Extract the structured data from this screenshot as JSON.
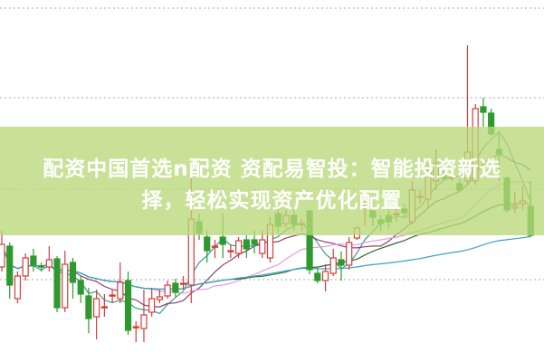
{
  "title": {
    "line1": "配资中国首选n配资 资配易智投：智能投资新选",
    "line2": "择，轻松实现资产优化配置"
  },
  "colors": {
    "up": "#d23c3c",
    "down": "#2e9a2e",
    "banner": "#b8d878",
    "grid": "#aaaaaa",
    "ma": [
      "#3a9b8f",
      "#8e3f6e",
      "#e79be0",
      "#2f6b2f",
      "#3aa3c6"
    ]
  },
  "chart_data": {
    "type": "candlestick",
    "ylim": [
      0,
      40
    ],
    "grid": true,
    "moving_average_periods": [
      5,
      10,
      20,
      30,
      60
    ],
    "candles": [
      [
        10.5,
        14.5,
        10.0,
        13.0
      ],
      [
        12.8,
        13.2,
        7.0,
        8.5
      ],
      [
        7.0,
        10.0,
        6.5,
        9.5
      ],
      [
        9.5,
        12.0,
        9.0,
        11.5
      ],
      [
        11.7,
        12.5,
        10.0,
        10.7
      ],
      [
        10.6,
        11.0,
        10.0,
        10.5
      ],
      [
        10.5,
        12.8,
        10.0,
        11.3
      ],
      [
        11.4,
        11.7,
        5.5,
        6.0
      ],
      [
        6.0,
        12.3,
        5.5,
        10.8
      ],
      [
        11.0,
        11.5,
        7.0,
        8.8
      ],
      [
        9.0,
        9.5,
        6.5,
        7.5
      ],
      [
        7.3,
        8.2,
        3.2,
        4.8
      ],
      [
        5.0,
        8.0,
        2.5,
        7.0
      ],
      [
        6.0,
        7.5,
        5.0,
        6.1
      ],
      [
        7.3,
        8.0,
        6.5,
        7.4
      ],
      [
        7.0,
        11.0,
        6.5,
        8.8
      ],
      [
        9.0,
        10.0,
        3.0,
        3.5
      ],
      [
        3.8,
        4.5,
        2.2,
        3.9
      ],
      [
        3.7,
        8.0,
        2.2,
        5.2
      ],
      [
        5.5,
        8.2,
        5.0,
        7.0
      ],
      [
        6.9,
        8.0,
        6.5,
        7.2
      ],
      [
        7.3,
        9.0,
        7.0,
        8.5
      ],
      [
        8.7,
        9.2,
        7.2,
        7.7
      ],
      [
        8.6,
        9.5,
        8.0,
        8.7
      ],
      [
        8.5,
        20.5,
        6.5,
        15.8
      ],
      [
        15.5,
        16.4,
        13.5,
        14.2
      ],
      [
        13.8,
        14.5,
        11.0,
        12.3
      ],
      [
        12.7,
        13.5,
        11.5,
        12.8
      ],
      [
        13.8,
        16.4,
        11.5,
        13.0
      ],
      [
        12.2,
        13.0,
        11.5,
        12.3
      ],
      [
        12.0,
        13.8,
        11.5,
        13.4
      ],
      [
        13.5,
        14.0,
        11.5,
        12.5
      ],
      [
        13.5,
        14.5,
        12.0,
        13.0
      ],
      [
        12.0,
        14.5,
        11.5,
        13.5
      ],
      [
        11.5,
        16.0,
        11.0,
        15.2
      ],
      [
        16.4,
        17.0,
        14.2,
        15.0
      ],
      [
        15.3,
        16.8,
        14.8,
        16.2
      ],
      [
        16.2,
        16.8,
        14.5,
        15.2
      ],
      [
        15.2,
        15.8,
        14.5,
        15.3
      ],
      [
        16.7,
        16.7,
        9.7,
        10.2
      ],
      [
        9.8,
        10.5,
        8.7,
        9.0
      ],
      [
        9.0,
        10.8,
        7.8,
        10.0
      ],
      [
        9.8,
        12.5,
        9.5,
        11.5
      ],
      [
        11.3,
        12.2,
        9.0,
        10.7
      ],
      [
        10.7,
        13.8,
        10.2,
        13.2
      ],
      [
        13.7,
        15.0,
        13.5,
        14.8
      ],
      [
        17.3,
        17.8,
        15.0,
        17.4
      ],
      [
        16.7,
        17.2,
        15.0,
        16.0
      ],
      [
        15.7,
        16.2,
        14.5,
        15.3
      ],
      [
        16.2,
        17.0,
        14.7,
        15.5
      ],
      [
        16.3,
        17.0,
        15.5,
        16.4
      ],
      [
        16.9,
        17.5,
        16.0,
        16.5
      ],
      [
        15.5,
        20.0,
        15.2,
        19.0
      ],
      [
        18.2,
        19.0,
        17.5,
        18.3
      ],
      [
        18.0,
        22.0,
        17.0,
        21.0
      ],
      [
        20.0,
        23.5,
        19.0,
        22.0
      ],
      [
        20.7,
        21.5,
        20.0,
        20.3
      ],
      [
        20.3,
        20.8,
        20.0,
        20.4
      ],
      [
        19.7,
        20.2,
        18.8,
        19.0
      ],
      [
        20.0,
        35.0,
        19.7,
        23.2
      ],
      [
        20.0,
        28.5,
        19.5,
        28.0
      ],
      [
        28.2,
        29.2,
        26.0,
        27.6
      ],
      [
        27.5,
        28.0,
        25.0,
        25.2
      ],
      [
        23.5,
        25.5,
        20.0,
        23.0
      ],
      [
        20.3,
        20.5,
        16.5,
        16.8
      ],
      [
        17.0,
        18.8,
        16.5,
        17.2
      ],
      [
        17.5,
        19.5,
        16.8,
        17.8
      ],
      [
        17.2,
        20.0,
        13.8,
        14.0
      ]
    ]
  }
}
